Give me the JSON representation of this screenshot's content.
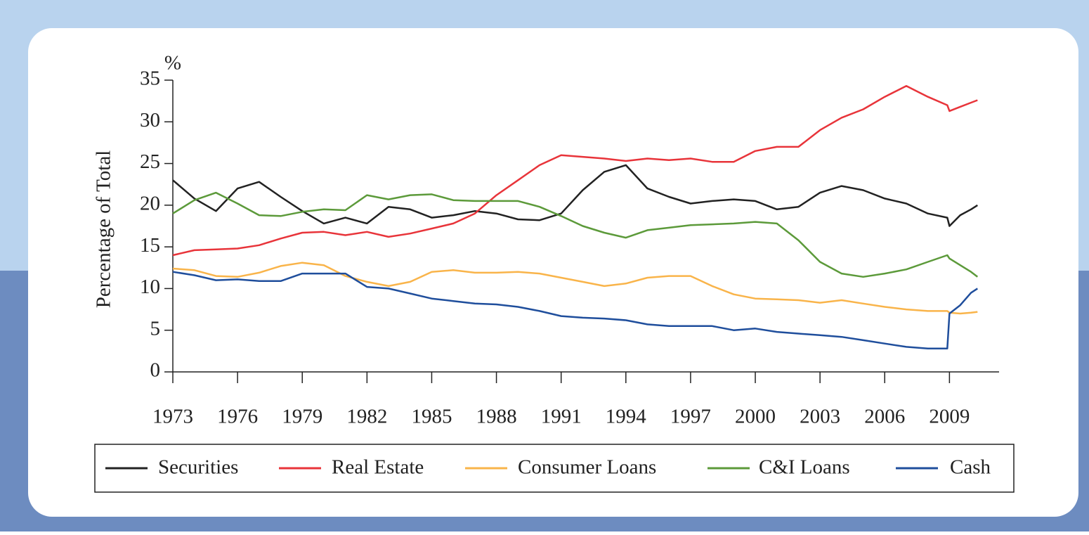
{
  "chart_data": {
    "type": "line",
    "y_label": "Percentage of Total",
    "y_unit": "%",
    "x": [
      1973,
      1974,
      1975,
      1976,
      1977,
      1978,
      1979,
      1980,
      1981,
      1982,
      1983,
      1984,
      1985,
      1986,
      1987,
      1988,
      1989,
      1990,
      1991,
      1992,
      1993,
      1994,
      1995,
      1996,
      1997,
      1998,
      1999,
      2000,
      2001,
      2002,
      2003,
      2004,
      2005,
      2006,
      2007,
      2008,
      2008.9,
      2009,
      2009.5,
      2010,
      2010.3
    ],
    "series": [
      {
        "name": "Securities",
        "color": "#222222",
        "values": [
          23,
          20.8,
          19.3,
          22,
          22.8,
          21,
          19.3,
          17.8,
          18.5,
          17.8,
          19.8,
          19.5,
          18.5,
          18.8,
          19.3,
          19,
          18.3,
          18.2,
          19,
          21.8,
          24,
          24.8,
          22,
          21,
          20.2,
          20.5,
          20.7,
          20.5,
          19.5,
          19.8,
          21.5,
          22.3,
          21.8,
          20.8,
          20.2,
          19,
          18.5,
          17.5,
          18.8,
          19.5,
          20
        ]
      },
      {
        "name": "Real Estate",
        "color": "#e8343a",
        "values": [
          14,
          14.6,
          14.7,
          14.8,
          15.2,
          16,
          16.7,
          16.8,
          16.4,
          16.8,
          16.2,
          16.6,
          17.2,
          17.8,
          19,
          21.2,
          23,
          24.8,
          26,
          25.8,
          25.6,
          25.3,
          25.6,
          25.4,
          25.6,
          25.2,
          25.2,
          26.5,
          27,
          27,
          29,
          30.5,
          31.5,
          33,
          34.3,
          33,
          32,
          31.3,
          31.8,
          32.3,
          32.6
        ]
      },
      {
        "name": "Consumer Loans",
        "color": "#f9b44a",
        "values": [
          12.4,
          12.2,
          11.5,
          11.4,
          11.9,
          12.7,
          13.1,
          12.8,
          11.5,
          10.8,
          10.3,
          10.8,
          12,
          12.2,
          11.9,
          11.9,
          12,
          11.8,
          11.3,
          10.8,
          10.3,
          10.6,
          11.3,
          11.5,
          11.5,
          10.3,
          9.3,
          8.8,
          8.7,
          8.6,
          8.3,
          8.6,
          8.2,
          7.8,
          7.5,
          7.3,
          7.3,
          7.1,
          7,
          7.1,
          7.2
        ]
      },
      {
        "name": "C&I Loans",
        "color": "#5c9a3a",
        "values": [
          19,
          20.6,
          21.5,
          20.2,
          18.8,
          18.7,
          19.2,
          19.5,
          19.4,
          21.2,
          20.7,
          21.2,
          21.3,
          20.6,
          20.5,
          20.5,
          20.5,
          19.8,
          18.7,
          17.5,
          16.7,
          16.1,
          17,
          17.3,
          17.6,
          17.7,
          17.8,
          18,
          17.8,
          15.8,
          13.2,
          11.8,
          11.4,
          11.8,
          12.3,
          13.2,
          14,
          13.6,
          12.8,
          12,
          11.4
        ]
      },
      {
        "name": "Cash",
        "color": "#1f4e9c",
        "values": [
          12,
          11.6,
          11,
          11.1,
          10.9,
          10.9,
          11.8,
          11.8,
          11.8,
          10.2,
          10,
          9.4,
          8.8,
          8.5,
          8.2,
          8.1,
          7.8,
          7.3,
          6.7,
          6.5,
          6.4,
          6.2,
          5.7,
          5.5,
          5.5,
          5.5,
          5,
          5.2,
          4.8,
          4.6,
          4.4,
          4.2,
          3.8,
          3.4,
          3,
          2.8,
          2.8,
          7,
          8,
          9.5,
          10
        ]
      }
    ],
    "xlim": [
      1973,
      2011.3
    ],
    "xticks": [
      1973,
      1976,
      1979,
      1982,
      1985,
      1988,
      1991,
      1994,
      1997,
      2000,
      2003,
      2006,
      2009
    ],
    "ylim": [
      0,
      35
    ],
    "yticks": [
      0,
      5,
      10,
      15,
      20,
      25,
      30,
      35
    ],
    "legend": "bottom"
  }
}
